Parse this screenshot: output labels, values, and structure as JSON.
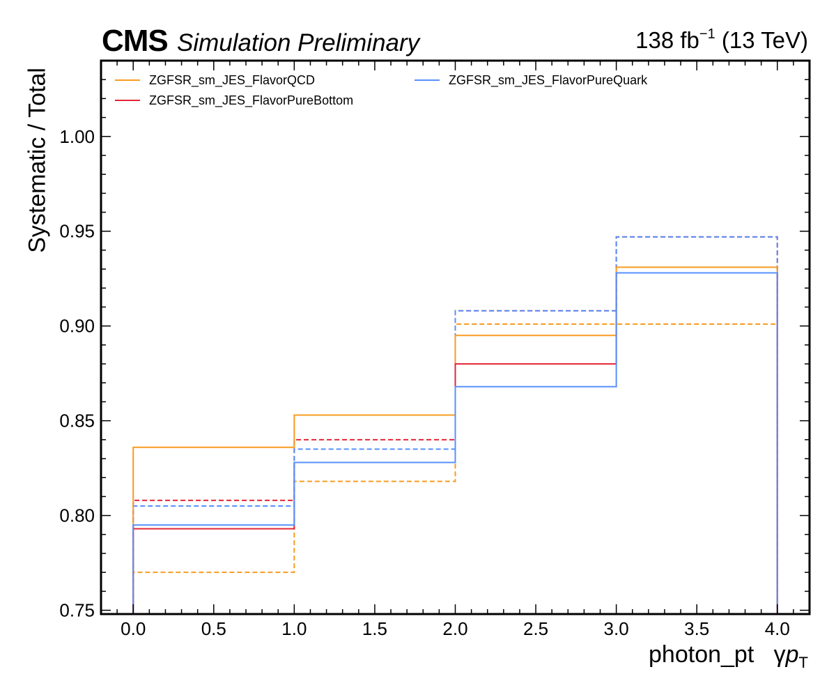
{
  "header": {
    "experiment": "CMS",
    "status": "Simulation Preliminary",
    "lumi_value": "138 fb",
    "lumi_exp": "−1",
    "energy": " (13 TeV)"
  },
  "axis_labels": {
    "y": "Systematic / Total",
    "x_name": "photon_pt",
    "x_symbol_gamma": "γ",
    "x_symbol_p": "p",
    "x_symbol_sub": "T"
  },
  "colors": {
    "orange": "#f89c20",
    "red": "#e42536",
    "blue": "#5790fc"
  },
  "chart_data": {
    "type": "line",
    "style": "step histogram",
    "bin_edges": [
      0,
      1,
      2,
      3,
      4
    ],
    "xlim": [
      -0.2,
      4.2
    ],
    "ylim": [
      0.748,
      1.04
    ],
    "x_ticks": [
      "0.0",
      "0.5",
      "1.0",
      "1.5",
      "2.0",
      "2.5",
      "3.0",
      "3.5",
      "4.0"
    ],
    "y_ticks": [
      "0.75",
      "0.80",
      "0.85",
      "0.90",
      "0.95",
      "1.00"
    ],
    "grid": false,
    "legend_position": "top",
    "series": [
      {
        "name": "ZGFSR_sm_JES_FlavorQCD",
        "color": "#f89c20",
        "style": "solid",
        "values": [
          0.836,
          0.853,
          0.895,
          0.931
        ]
      },
      {
        "name": "ZGFSR_sm_JES_FlavorQCD",
        "color": "#f89c20",
        "style": "dashed",
        "values": [
          0.77,
          0.818,
          0.901,
          0.901
        ]
      },
      {
        "name": "ZGFSR_sm_JES_FlavorPureBottom",
        "color": "#e42536",
        "style": "solid",
        "values": [
          0.793,
          0.828,
          0.88,
          0.928
        ]
      },
      {
        "name": "ZGFSR_sm_JES_FlavorPureBottom",
        "color": "#e42536",
        "style": "dashed",
        "values": [
          0.808,
          0.84,
          0.908,
          0.947
        ]
      },
      {
        "name": "ZGFSR_sm_JES_FlavorPureQuark",
        "color": "#5790fc",
        "style": "solid",
        "values": [
          0.795,
          0.828,
          0.868,
          0.928
        ]
      },
      {
        "name": "ZGFSR_sm_JES_FlavorPureQuark",
        "color": "#5790fc",
        "style": "dashed",
        "values": [
          0.805,
          0.835,
          0.908,
          0.947
        ]
      }
    ],
    "legend": [
      {
        "label": "ZGFSR_sm_JES_FlavorQCD",
        "color": "#f89c20"
      },
      {
        "label": "ZGFSR_sm_JES_FlavorPureBottom",
        "color": "#e42536"
      },
      {
        "label": "ZGFSR_sm_JES_FlavorPureQuark",
        "color": "#5790fc"
      }
    ]
  }
}
